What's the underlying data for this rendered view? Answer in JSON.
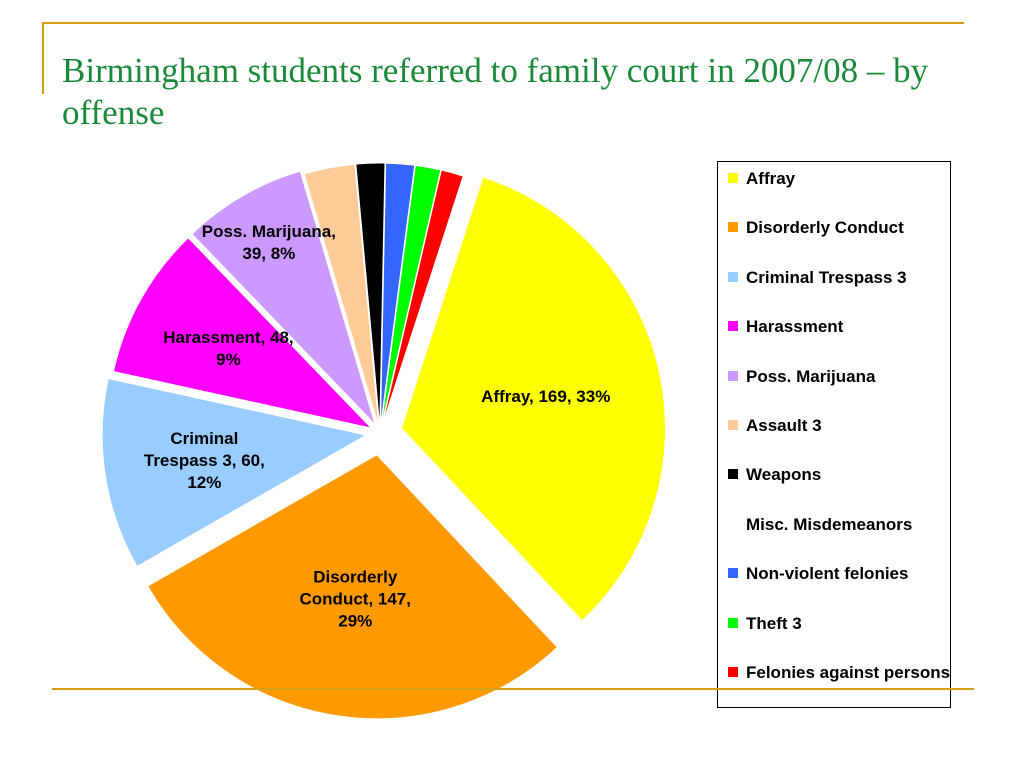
{
  "title": "Birmingham students referred to family court in 2007/08 – by offense",
  "chart_data": {
    "type": "pie",
    "title": "Birmingham students referred to family court in 2007/08 – by offense",
    "legend_placement": "right",
    "slices": [
      {
        "name": "Affray",
        "value": 169,
        "percent": 33,
        "color": "#ffff00",
        "label_lines": [
          "Affray, 169, 33%"
        ]
      },
      {
        "name": "Disorderly Conduct",
        "value": 147,
        "percent": 29,
        "color": "#ff9900",
        "label_lines": [
          "Disorderly",
          "Conduct, 147,",
          "29%"
        ]
      },
      {
        "name": "Criminal Trespass 3",
        "value": 60,
        "percent": 12,
        "color": "#99ccff",
        "label_lines": [
          "Criminal",
          "Trespass 3, 60,",
          "12%"
        ]
      },
      {
        "name": "Harassment",
        "value": 48,
        "percent": 9,
        "color": "#ff00ff",
        "label_lines": [
          "Harassment, 48,",
          "9%"
        ]
      },
      {
        "name": "Poss. Marijuana",
        "value": 39,
        "percent": 8,
        "color": "#cc99ff",
        "label_lines": [
          "Poss. Marijuana,",
          "39, 8%"
        ]
      },
      {
        "name": "Assault 3",
        "value": 16,
        "percent": 3,
        "color": "#ffcc99",
        "label_lines": []
      },
      {
        "name": "Weapons",
        "value": 9,
        "percent": 2,
        "color": "#000000",
        "label_lines": []
      },
      {
        "name": "Misc. Misdemeanors",
        "value": 0,
        "percent": 0,
        "color": "#ffffff",
        "label_lines": []
      },
      {
        "name": "Non-violent felonies",
        "value": 9,
        "percent": 2,
        "color": "#3366ff",
        "label_lines": []
      },
      {
        "name": "Theft 3",
        "value": 8,
        "percent": 2,
        "color": "#00ff00",
        "label_lines": []
      },
      {
        "name": "Felonies against persons",
        "value": 7,
        "percent": 1,
        "color": "#ff0000",
        "label_lines": []
      }
    ]
  },
  "legend": {
    "items": [
      {
        "label": "Affray",
        "color": "#ffff00"
      },
      {
        "label": "Disorderly Conduct",
        "color": "#ff9900"
      },
      {
        "label": "Criminal Trespass 3",
        "color": "#99ccff"
      },
      {
        "label": "Harassment",
        "color": "#ff00ff"
      },
      {
        "label": "Poss. Marijuana",
        "color": "#cc99ff"
      },
      {
        "label": "Assault 3",
        "color": "#ffcc99"
      },
      {
        "label": "Weapons",
        "color": "#000000"
      },
      {
        "label": "Misc. Misdemeanors",
        "color": "#ffffff"
      },
      {
        "label": "Non-violent felonies",
        "color": "#3366ff"
      },
      {
        "label": "Theft 3",
        "color": "#00ff00"
      },
      {
        "label": "Felonies against persons",
        "color": "#ff0000"
      }
    ]
  }
}
